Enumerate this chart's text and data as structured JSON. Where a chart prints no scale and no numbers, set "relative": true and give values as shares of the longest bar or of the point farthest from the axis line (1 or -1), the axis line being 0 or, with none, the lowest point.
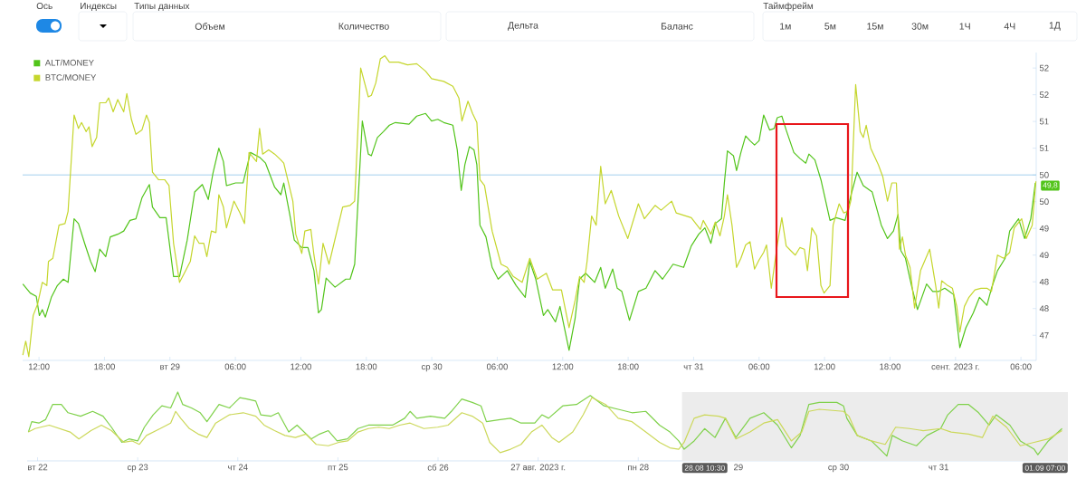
{
  "chart_data": [
    {
      "type": "other",
      "annotations": [
        "Ось",
        "Индексы",
        "Типы данных",
        "Объем",
        "Количество",
        "Дельта",
        "Баланс",
        "Таймфрейм",
        "1м",
        "5м",
        "15м",
        "30м",
        "1Ч",
        "4Ч",
        "1Д"
      ]
    },
    {
      "type": "line",
      "legend": "top left",
      "xlim": [
        "2023-08-28T10:30",
        "2023-09-01T07:24"
      ],
      "xticks": [
        {
          "value": "2023-08-28T12:00",
          "label": "12:00"
        },
        {
          "value": "2023-08-28T18:00",
          "label": "18:00"
        },
        {
          "value": "2023-08-29T00:00",
          "label": "вт 29"
        },
        {
          "value": "2023-08-29T06:00",
          "label": "06:00"
        },
        {
          "value": "2023-08-29T12:00",
          "label": "12:00"
        },
        {
          "value": "2023-08-29T18:00",
          "label": "18:00"
        },
        {
          "value": "2023-08-30T00:00",
          "label": "ср 30"
        },
        {
          "value": "2023-08-30T06:00",
          "label": "06:00"
        },
        {
          "value": "2023-08-30T12:00",
          "label": "12:00"
        },
        {
          "value": "2023-08-30T18:00",
          "label": "18:00"
        },
        {
          "value": "2023-08-31T00:00",
          "label": "чт 31"
        },
        {
          "value": "2023-08-31T06:00",
          "label": "06:00"
        },
        {
          "value": "2023-08-31T12:00",
          "label": "12:00"
        },
        {
          "value": "2023-08-31T18:00",
          "label": "18:00"
        },
        {
          "value": "2023-09-01T00:00",
          "label": "сент. 2023 г."
        },
        {
          "value": "2023-09-01T06:00",
          "label": "06:00"
        }
      ],
      "ylim": [
        46.53,
        52.29
      ],
      "yticks": [
        47,
        {
          "value": 47.5,
          "label": "48"
        },
        48,
        {
          "value": 48.5,
          "label": "49"
        },
        49,
        {
          "value": 49.5,
          "label": "50"
        },
        50,
        {
          "value": 50.5,
          "label": "51"
        },
        51,
        {
          "value": 51.5,
          "label": "52"
        },
        52
      ],
      "ref_lines": [
        {
          "axis": "y",
          "value": 50,
          "color": "#8ec5ea"
        }
      ],
      "annotations": [
        {
          "text": "49,8",
          "x": "2023-09-01T07:19",
          "y": 49.8
        }
      ],
      "series": [
        {
          "name": "ALT/MONEY",
          "color": "#52c41a",
          "x": [
            "2023-08-28T10:31",
            "2023-08-28T11:12",
            "2023-08-28T11:45",
            "2023-08-28T12:02",
            "2023-08-28T12:18",
            "2023-08-28T12:35",
            "2023-08-28T13:08",
            "2023-08-28T13:41",
            "2023-08-28T14:14",
            "2023-08-28T14:40",
            "2023-08-28T15:13",
            "2023-08-28T15:37",
            "2023-08-28T16:11",
            "2023-08-28T16:44",
            "2023-08-28T17:09",
            "2023-08-28T17:34",
            "2023-08-28T18:07",
            "2023-08-28T18:32",
            "2023-08-28T19:13",
            "2023-08-28T19:46",
            "2023-08-28T20:20",
            "2023-08-28T20:53",
            "2023-08-28T21:26",
            "2023-08-28T22:07",
            "2023-08-28T22:24",
            "2023-08-28T23:05",
            "2023-08-28T23:39",
            "2023-08-29T00:20",
            "2023-08-29T00:53",
            "2023-08-29T01:35",
            "2023-08-29T02:16",
            "2023-08-29T02:58",
            "2023-08-29T03:31",
            "2023-08-29T03:56",
            "2023-08-29T04:29",
            "2023-08-29T04:54",
            "2023-08-29T05:11",
            "2023-08-29T06:01",
            "2023-08-29T06:42",
            "2023-08-29T07:23",
            "2023-08-29T08:13",
            "2023-08-29T08:46",
            "2023-08-29T09:36",
            "2023-08-29T10:10",
            "2023-08-29T10:26",
            "2023-08-29T10:59",
            "2023-08-29T11:24",
            "2023-08-29T12:05",
            "2023-08-29T12:39",
            "2023-08-29T13:12",
            "2023-08-29T13:37",
            "2023-08-29T13:53",
            "2023-08-29T14:19",
            "2023-08-29T15:08",
            "2023-08-29T16:07",
            "2023-08-29T16:31",
            "2023-08-29T16:56",
            "2023-08-29T17:38",
            "2023-08-29T18:11",
            "2023-08-29T18:28",
            "2023-08-29T19:01",
            "2023-08-29T19:34",
            "2023-08-29T20:07",
            "2023-08-29T20:40",
            "2023-08-29T21:55",
            "2023-08-29T22:37",
            "2023-08-29T23:26",
            "2023-08-29T23:59",
            "2023-08-30T00:33",
            "2023-08-30T01:06",
            "2023-08-30T01:56",
            "2023-08-30T02:20",
            "2023-08-30T02:42",
            "2023-08-30T03:02",
            "2023-08-30T03:27",
            "2023-08-30T03:52",
            "2023-08-30T04:08",
            "2023-08-30T04:25",
            "2023-08-30T04:58",
            "2023-08-30T05:32",
            "2023-08-30T06:05",
            "2023-08-30T06:55",
            "2023-08-30T07:44",
            "2023-08-30T08:34",
            "2023-08-30T08:59",
            "2023-08-30T09:32",
            "2023-08-30T10:14",
            "2023-08-30T10:38",
            "2023-08-30T11:20",
            "2023-08-30T11:45",
            "2023-08-30T12:35",
            "2023-08-30T13:08",
            "2023-08-30T13:33",
            "2023-08-30T14:06",
            "2023-08-30T14:56",
            "2023-08-30T15:29",
            "2023-08-30T15:54",
            "2023-08-30T16:35",
            "2023-08-30T17:00",
            "2023-08-30T17:25",
            "2023-08-30T18:07",
            "2023-08-30T18:56",
            "2023-08-30T19:38",
            "2023-08-30T20:28",
            "2023-08-30T21:09",
            "2023-08-30T22:07",
            "2023-08-30T23:05",
            "2023-08-30T23:47",
            "2023-08-31T00:28",
            "2023-08-31T01:02",
            "2023-08-31T01:35",
            "2023-08-31T01:59",
            "2023-08-31T02:33",
            "2023-08-31T02:49",
            "2023-08-31T03:06",
            "2023-08-31T03:39",
            "2023-08-31T03:56",
            "2023-08-31T04:20",
            "2023-08-31T04:46",
            "2023-08-31T05:10",
            "2023-08-31T05:35",
            "2023-08-31T06:00",
            "2023-08-31T06:25",
            "2023-08-31T06:58",
            "2023-08-31T07:23",
            "2023-08-31T07:40",
            "2023-08-31T08:05",
            "2023-08-31T08:29",
            "2023-08-31T09:11",
            "2023-08-31T09:44",
            "2023-08-31T10:17",
            "2023-08-31T10:34",
            "2023-08-31T11:07",
            "2023-08-31T11:40",
            "2023-08-31T12:30",
            "2023-08-31T13:04",
            "2023-08-31T13:53",
            "2023-08-31T14:26",
            "2023-08-31T14:59",
            "2023-08-31T15:33",
            "2023-08-31T16:22",
            "2023-08-31T17:12",
            "2023-08-31T17:46",
            "2023-08-31T18:19",
            "2023-08-31T18:44",
            "2023-08-31T19:00",
            "2023-08-31T19:25",
            "2023-08-31T19:58",
            "2023-08-31T20:31",
            "2023-08-31T21:21",
            "2023-08-31T21:55",
            "2023-08-31T22:28",
            "2023-08-31T23:01",
            "2023-08-31T23:26",
            "2023-08-31T23:50",
            "2023-09-01T00:24",
            "2023-09-01T00:57",
            "2023-09-01T01:38",
            "2023-09-01T02:12",
            "2023-09-01T02:53",
            "2023-09-01T03:18",
            "2023-09-01T03:51",
            "2023-09-01T04:33",
            "2023-09-01T04:58",
            "2023-09-01T05:47",
            "2023-09-01T06:20",
            "2023-09-01T06:54",
            "2023-09-01T07:19"
          ],
          "values": [
            47.96,
            47.79,
            47.73,
            47.37,
            47.48,
            47.34,
            47.71,
            47.93,
            48.05,
            47.99,
            49.18,
            49.09,
            48.72,
            48.38,
            48.19,
            48.61,
            48.47,
            48.84,
            48.89,
            48.95,
            49.15,
            49.18,
            49.57,
            49.82,
            49.4,
            49.2,
            49.2,
            48.1,
            48.1,
            48.78,
            49.68,
            49.82,
            49.54,
            50.02,
            50.5,
            50.25,
            49.8,
            49.85,
            49.85,
            50.42,
            50.33,
            50.22,
            49.77,
            49.63,
            49.85,
            49.26,
            48.78,
            48.64,
            48.64,
            48.21,
            47.42,
            47.48,
            48.07,
            47.9,
            48.05,
            48.05,
            48.33,
            51.01,
            50.39,
            50.36,
            50.7,
            50.81,
            50.93,
            50.98,
            50.95,
            51.1,
            51.15,
            51.01,
            51.04,
            50.98,
            50.93,
            50.47,
            49.71,
            50.19,
            50.53,
            50.47,
            50.19,
            49.06,
            48.84,
            48.27,
            48.05,
            48.21,
            47.93,
            47.71,
            48.38,
            48.05,
            47.37,
            47.48,
            47.25,
            47.54,
            46.72,
            47.31,
            48.05,
            48.16,
            47.99,
            48.27,
            47.88,
            48.24,
            47.88,
            47.82,
            47.28,
            47.82,
            47.88,
            48.21,
            48.05,
            48.33,
            48.27,
            48.67,
            48.89,
            49.01,
            48.72,
            49.09,
            49.18,
            49.85,
            50.45,
            50.36,
            50.08,
            50.42,
            50.73,
            50.64,
            50.56,
            50.64,
            51.12,
            50.84,
            50.87,
            51.07,
            51.1,
            50.84,
            50.42,
            50.31,
            50.22,
            50.39,
            50.28,
            49.91,
            49.15,
            49.2,
            49.15,
            49.63,
            50.05,
            49.8,
            49.68,
            49.06,
            48.81,
            48.95,
            49.26,
            48.58,
            48.44,
            47.93,
            47.48,
            47.96,
            47.82,
            47.82,
            47.88,
            47.82,
            47.76,
            46.77,
            47.14,
            47.42,
            47.71,
            47.56,
            47.88,
            48.21,
            48.44,
            48.95,
            49.18,
            48.81,
            49.18,
            49.85
          ]
        },
        {
          "name": "BTC/MONEY",
          "color": "#c5d62d",
          "x": [
            "2023-08-28T10:31",
            "2023-08-28T10:47",
            "2023-08-28T11:04",
            "2023-08-28T11:28",
            "2023-08-28T11:53",
            "2023-08-28T12:18",
            "2023-08-28T12:43",
            "2023-08-28T12:52",
            "2023-08-28T13:16",
            "2023-08-28T13:50",
            "2023-08-28T14:23",
            "2023-08-28T14:40",
            "2023-08-28T15:13",
            "2023-08-28T15:37",
            "2023-08-28T15:54",
            "2023-08-28T16:19",
            "2023-08-28T16:35",
            "2023-08-28T16:52",
            "2023-08-28T17:17",
            "2023-08-28T17:34",
            "2023-08-28T18:07",
            "2023-08-28T18:23",
            "2023-08-28T18:48",
            "2023-08-28T19:13",
            "2023-08-28T19:46",
            "2023-08-28T20:03",
            "2023-08-28T20:28",
            "2023-08-28T20:53",
            "2023-08-28T21:26",
            "2023-08-28T21:51",
            "2023-08-28T22:07",
            "2023-08-28T22:24",
            "2023-08-28T22:57",
            "2023-08-28T23:31",
            "2023-08-28T23:55",
            "2023-08-29T00:20",
            "2023-08-29T00:53",
            "2023-08-29T01:19",
            "2023-08-29T01:52",
            "2023-08-29T02:16",
            "2023-08-29T02:41",
            "2023-08-29T03:06",
            "2023-08-29T03:23",
            "2023-08-29T03:48",
            "2023-08-29T04:13",
            "2023-08-29T04:29",
            "2023-08-29T04:54",
            "2023-08-29T05:11",
            "2023-08-29T05:52",
            "2023-08-29T06:25",
            "2023-08-29T06:50",
            "2023-08-29T07:15",
            "2023-08-29T07:56",
            "2023-08-29T08:13",
            "2023-08-29T08:30",
            "2023-08-29T09:03",
            "2023-08-29T09:36",
            "2023-08-29T10:10",
            "2023-08-29T10:26",
            "2023-08-29T11:16",
            "2023-08-29T11:32",
            "2023-08-29T12:05",
            "2023-08-29T12:22",
            "2023-08-29T12:55",
            "2023-08-29T13:12",
            "2023-08-29T13:37",
            "2023-08-29T14:02",
            "2023-08-29T14:35",
            "2023-08-29T15:50",
            "2023-08-29T16:31",
            "2023-08-29T16:56",
            "2023-08-29T17:29",
            "2023-08-29T18:11",
            "2023-08-29T18:28",
            "2023-08-29T18:52",
            "2023-08-29T19:17",
            "2023-08-29T19:42",
            "2023-08-29T20:07",
            "2023-08-29T20:57",
            "2023-08-29T21:47",
            "2023-08-29T22:37",
            "2023-08-29T23:26",
            "2023-08-29T23:59",
            "2023-08-30T01:06",
            "2023-08-30T01:56",
            "2023-08-30T02:29",
            "2023-08-30T02:46",
            "2023-08-30T03:19",
            "2023-08-30T03:44",
            "2023-08-30T04:08",
            "2023-08-30T04:25",
            "2023-08-30T04:50",
            "2023-08-30T05:32",
            "2023-08-30T06:21",
            "2023-08-30T06:55",
            "2023-08-30T07:28",
            "2023-08-30T08:17",
            "2023-08-30T08:59",
            "2023-08-30T09:40",
            "2023-08-30T10:30",
            "2023-08-30T11:04",
            "2023-08-30T11:53",
            "2023-08-30T12:35",
            "2023-08-30T13:08",
            "2023-08-30T13:33",
            "2023-08-30T13:58",
            "2023-08-30T14:14",
            "2023-08-30T14:39",
            "2023-08-30T15:04",
            "2023-08-30T15:29",
            "2023-08-30T15:54",
            "2023-08-30T16:27",
            "2023-08-30T17:08",
            "2023-08-30T17:58",
            "2023-08-30T18:56",
            "2023-08-30T19:29",
            "2023-08-30T20:28",
            "2023-08-30T21:01",
            "2023-08-30T21:59",
            "2023-08-30T22:24",
            "2023-08-30T23:47",
            "2023-08-31T00:37",
            "2023-08-31T00:53",
            "2023-08-31T01:35",
            "2023-08-31T01:59",
            "2023-08-31T02:25",
            "2023-08-31T02:49",
            "2023-08-31T03:06",
            "2023-08-31T03:31",
            "2023-08-31T03:56",
            "2023-08-31T04:20",
            "2023-08-31T04:46",
            "2023-08-31T05:10",
            "2023-08-31T05:35",
            "2023-08-31T06:00",
            "2023-08-31T06:25",
            "2023-08-31T06:41",
            "2023-08-31T07:07",
            "2023-08-31T07:40",
            "2023-08-31T08:05",
            "2023-08-31T08:29",
            "2023-08-31T08:55",
            "2023-08-31T09:19",
            "2023-08-31T09:44",
            "2023-08-31T10:09",
            "2023-08-31T10:26",
            "2023-08-31T10:50",
            "2023-08-31T11:16",
            "2023-08-31T11:40",
            "2023-08-31T11:57",
            "2023-08-31T12:30",
            "2023-08-31T12:47",
            "2023-08-31T13:20",
            "2023-08-31T13:45",
            "2023-08-31T14:10",
            "2023-08-31T14:26",
            "2023-08-31T14:51",
            "2023-08-31T15:16",
            "2023-08-31T15:33",
            "2023-08-31T15:49",
            "2023-08-31T16:14",
            "2023-08-31T16:56",
            "2023-08-31T17:20",
            "2023-08-31T17:46",
            "2023-08-31T18:10",
            "2023-08-31T18:35",
            "2023-08-31T18:52",
            "2023-08-31T19:08",
            "2023-08-31T19:25",
            "2023-08-31T19:50",
            "2023-08-31T20:15",
            "2023-08-31T20:48",
            "2023-08-31T21:38",
            "2023-08-31T22:11",
            "2023-08-31T22:28",
            "2023-08-31T22:44",
            "2023-08-31T23:17",
            "2023-08-31T23:43",
            "2023-09-01T00:07",
            "2023-09-01T00:24",
            "2023-09-01T00:49",
            "2023-09-01T01:14",
            "2023-09-01T01:47",
            "2023-09-01T02:20",
            "2023-09-01T02:53",
            "2023-09-01T03:18",
            "2023-09-01T03:51",
            "2023-09-01T04:25",
            "2023-09-01T04:58",
            "2023-09-01T05:23",
            "2023-09-01T06:04",
            "2023-09-01T06:29",
            "2023-09-01T07:02",
            "2023-09-01T07:22"
          ],
          "values": [
            46.63,
            46.89,
            46.6,
            47.37,
            47.59,
            47.99,
            47.93,
            48.38,
            48.44,
            49.06,
            49.09,
            49.32,
            51.12,
            50.87,
            50.98,
            50.81,
            50.9,
            50.53,
            50.7,
            51.35,
            51.35,
            51.44,
            51.18,
            51.41,
            51.18,
            51.52,
            51.04,
            50.76,
            50.84,
            51.12,
            50.98,
            50.05,
            49.91,
            49.91,
            49.8,
            48.72,
            47.99,
            48.16,
            48.38,
            48.86,
            48.72,
            48.72,
            48.47,
            48.95,
            48.92,
            49.63,
            49.4,
            49.01,
            49.51,
            49.29,
            49.09,
            50.42,
            50.25,
            50.87,
            50.39,
            50.47,
            50.39,
            50.28,
            50.22,
            49.51,
            48.89,
            48.53,
            48.95,
            48.98,
            48.5,
            47.96,
            48.72,
            48.33,
            49.4,
            49.43,
            49.51,
            52.0,
            51.46,
            51.49,
            51.72,
            52.17,
            52.23,
            52.11,
            52.11,
            52.06,
            52.08,
            51.94,
            51.8,
            51.75,
            51.66,
            51.44,
            51.01,
            51.38,
            51.15,
            50.98,
            49.91,
            49.8,
            48.95,
            48.33,
            48.27,
            48.1,
            47.99,
            48.44,
            48.05,
            48.16,
            47.85,
            47.85,
            47.14,
            47.65,
            48.1,
            47.99,
            48.38,
            49.23,
            49.06,
            50.16,
            49.46,
            49.71,
            49.23,
            48.81,
            49.46,
            49.18,
            49.43,
            49.34,
            49.51,
            49.29,
            49.2,
            48.98,
            49.15,
            48.89,
            49.12,
            48.86,
            49.23,
            49.63,
            49.06,
            48.27,
            48.44,
            48.69,
            48.75,
            48.24,
            48.41,
            48.55,
            48.69,
            47.88,
            48.69,
            49.2,
            48.67,
            48.58,
            48.5,
            48.64,
            48.61,
            48.21,
            49.01,
            48.86,
            47.93,
            47.79,
            47.93,
            49.06,
            49.46,
            49.29,
            49.32,
            49.54,
            51.69,
            50.81,
            50.7,
            50.93,
            50.5,
            50.19,
            49.97,
            49.51,
            49.85,
            49.85,
            48.61,
            48.84,
            48.5,
            48.27,
            47.51,
            48.21,
            48.61,
            47.93,
            47.51,
            48.02,
            47.93,
            47.88,
            47.54,
            47.06,
            47.54,
            47.71,
            47.85,
            47.88,
            47.88,
            47.82,
            48.5,
            48.44,
            48.55,
            49.01,
            49.18,
            48.81,
            49.06,
            49.88
          ]
        }
      ]
    },
    {
      "type": "line",
      "relative": true,
      "xlim": [
        "2023-08-21T21:30",
        "2023-09-01T07:00"
      ],
      "xticks": [
        {
          "value": "2023-08-22T00:00",
          "label": "вт 22"
        },
        {
          "value": "2023-08-23T00:00",
          "label": "ср 23"
        },
        {
          "value": "2023-08-24T00:00",
          "label": "чт 24"
        },
        {
          "value": "2023-08-25T00:00",
          "label": "пт 25"
        },
        {
          "value": "2023-08-26T00:00",
          "label": "сб 26"
        },
        {
          "value": "2023-08-27T00:00",
          "label": "27 авг. 2023 г."
        },
        {
          "value": "2023-08-28T00:00",
          "label": "пн 28"
        },
        {
          "value": "2023-08-29T00:00",
          "label": "29"
        },
        {
          "value": "2023-08-30T00:00",
          "label": "ср 30"
        },
        {
          "value": "2023-08-31T00:00",
          "label": "чт 31"
        }
      ],
      "bands": [
        {
          "axis": "x",
          "from": "2023-08-28T10:30",
          "to": "2023-09-01T07:00",
          "color": "#ececec"
        }
      ],
      "annotations": [
        {
          "text": "28.08 10:30",
          "x": "2023-08-28T10:30",
          "y": 0
        },
        {
          "text": "01.09 07:00",
          "x": "2023-09-01T07:00",
          "y": 0
        }
      ],
      "series": [
        {
          "color": "#7fd14a",
          "x": [
            "2023-08-21T21:48",
            "2023-08-21T22:36",
            "2023-08-22T00:18",
            "2023-08-22T01:54",
            "2023-08-22T03:36",
            "2023-08-22T05:42",
            "2023-08-22T07:18",
            "2023-08-22T10:18",
            "2023-08-22T13:12",
            "2023-08-22T15:42",
            "2023-08-22T17:42",
            "2023-08-22T20:12",
            "2023-08-22T21:54",
            "2023-08-23T00:00",
            "2023-08-23T01:36",
            "2023-08-23T03:42",
            "2023-08-23T05:48",
            "2023-08-23T07:54",
            "2023-08-23T09:36",
            "2023-08-23T10:48",
            "2023-08-23T12:54",
            "2023-08-23T15:00",
            "2023-08-23T16:36",
            "2023-08-23T19:30",
            "2023-08-23T22:00",
            "2023-08-24T00:30",
            "2023-08-24T02:12",
            "2023-08-24T04:18",
            "2023-08-24T05:30",
            "2023-08-24T08:00",
            "2023-08-24T09:42",
            "2023-08-24T12:12",
            "2023-08-24T14:12",
            "2023-08-24T17:36",
            "2023-08-24T19:36",
            "2023-08-24T21:42",
            "2023-08-24T23:48",
            "2023-08-25T02:18",
            "2023-08-25T04:48",
            "2023-08-25T07:18",
            "2023-08-25T09:48",
            "2023-08-25T13:06",
            "2023-08-25T16:00",
            "2023-08-25T17:18",
            "2023-08-25T18:54",
            "2023-08-25T22:12",
            "2023-08-26T01:36",
            "2023-08-26T03:12",
            "2023-08-26T05:42",
            "2023-08-26T08:12",
            "2023-08-26T10:18",
            "2023-08-26T11:36",
            "2023-08-26T14:54",
            "2023-08-26T17:24",
            "2023-08-26T19:54",
            "2023-08-26T23:12",
            "2023-08-27T00:54",
            "2023-08-27T02:30",
            "2023-08-27T05:54",
            "2023-08-27T09:12",
            "2023-08-27T12:30",
            "2023-08-27T15:48",
            "2023-08-27T19:12",
            "2023-08-27T22:30",
            "2023-08-28T01:48",
            "2023-08-28T05:06",
            "2023-08-28T07:36",
            "2023-08-28T09:42",
            "2023-08-28T11:00",
            "2023-08-28T13:24",
            "2023-08-28T15:54",
            "2023-08-28T18:24",
            "2023-08-28T20:54",
            "2023-08-28T23:24",
            "2023-08-29T02:48",
            "2023-08-29T06:06",
            "2023-08-29T09:24",
            "2023-08-29T12:42",
            "2023-08-29T14:48",
            "2023-08-29T16:54",
            "2023-08-29T19:24",
            "2023-08-29T23:36",
            "2023-08-30T01:12",
            "2023-08-30T02:00",
            "2023-08-30T04:30",
            "2023-08-30T07:54",
            "2023-08-30T11:36",
            "2023-08-30T12:54",
            "2023-08-30T15:24",
            "2023-08-30T18:42",
            "2023-08-30T21:12",
            "2023-08-31T00:30",
            "2023-08-31T02:12",
            "2023-08-31T04:42",
            "2023-08-31T07:12",
            "2023-08-31T09:36",
            "2023-08-31T12:06",
            "2023-08-31T13:48",
            "2023-08-31T17:06",
            "2023-08-31T19:36",
            "2023-08-31T22:54",
            "2023-08-31T23:48",
            "2023-09-01T02:18",
            "2023-09-01T05:36"
          ],
          "values": [
            0.42,
            0.57,
            0.55,
            0.6,
            0.82,
            0.82,
            0.7,
            0.65,
            0.72,
            0.65,
            0.49,
            0.27,
            0.32,
            0.29,
            0.49,
            0.67,
            0.8,
            0.77,
            1.0,
            0.82,
            0.77,
            0.7,
            0.57,
            0.82,
            0.77,
            0.92,
            0.9,
            0.87,
            0.67,
            0.65,
            0.7,
            0.42,
            0.52,
            0.32,
            0.39,
            0.44,
            0.29,
            0.32,
            0.47,
            0.52,
            0.52,
            0.52,
            0.62,
            0.72,
            0.62,
            0.65,
            0.62,
            0.72,
            0.9,
            0.85,
            0.8,
            0.57,
            0.6,
            0.62,
            0.55,
            0.55,
            0.67,
            0.62,
            0.8,
            0.82,
            0.95,
            0.8,
            0.75,
            0.7,
            0.72,
            0.52,
            0.42,
            0.29,
            0.17,
            0.29,
            0.47,
            0.34,
            0.62,
            0.34,
            0.62,
            0.7,
            0.52,
            0.19,
            0.37,
            0.82,
            0.85,
            0.85,
            0.8,
            0.62,
            0.37,
            0.29,
            0.07,
            0.37,
            0.29,
            0.22,
            0.37,
            0.47,
            0.67,
            0.82,
            0.82,
            0.7,
            0.52,
            0.67,
            0.52,
            0.29,
            0.17,
            0.09,
            0.29,
            0.47
          ]
        },
        {
          "color": "#ccd85a",
          "x": [
            "2023-08-21T21:48",
            "2023-08-21T23:24",
            "2023-08-22T02:48",
            "2023-08-22T05:18",
            "2023-08-22T07:48",
            "2023-08-22T09:54",
            "2023-08-22T12:48",
            "2023-08-22T15:18",
            "2023-08-22T17:42",
            "2023-08-22T20:42",
            "2023-08-22T22:42",
            "2023-08-23T00:24",
            "2023-08-23T02:06",
            "2023-08-23T05:24",
            "2023-08-23T07:54",
            "2023-08-23T09:06",
            "2023-08-23T10:18",
            "2023-08-23T12:24",
            "2023-08-23T14:30",
            "2023-08-23T16:36",
            "2023-08-23T18:42",
            "2023-08-23T22:00",
            "2023-08-24T01:18",
            "2023-08-24T04:18",
            "2023-08-24T06:18",
            "2023-08-24T08:48",
            "2023-08-24T11:18",
            "2023-08-24T13:48",
            "2023-08-24T16:18",
            "2023-08-24T18:48",
            "2023-08-24T21:42",
            "2023-08-25T00:12",
            "2023-08-25T02:18",
            "2023-08-25T04:48",
            "2023-08-25T07:18",
            "2023-08-25T09:48",
            "2023-08-25T12:18",
            "2023-08-25T14:48",
            "2023-08-25T17:18",
            "2023-08-25T20:36",
            "2023-08-25T23:54",
            "2023-08-26T02:24",
            "2023-08-26T05:42",
            "2023-08-26T08:12",
            "2023-08-26T10:42",
            "2023-08-26T12:24",
            "2023-08-26T14:54",
            "2023-08-26T17:24",
            "2023-08-26T19:54",
            "2023-08-26T22:24",
            "2023-08-27T00:54",
            "2023-08-27T03:18",
            "2023-08-27T05:00",
            "2023-08-27T08:18",
            "2023-08-27T10:48",
            "2023-08-27T12:54",
            "2023-08-27T16:12",
            "2023-08-27T19:12",
            "2023-08-27T22:30",
            "2023-08-28T01:48",
            "2023-08-28T05:06",
            "2023-08-28T07:36",
            "2023-08-28T09:42",
            "2023-08-28T11:00",
            "2023-08-28T13:24",
            "2023-08-28T15:54",
            "2023-08-28T19:18",
            "2023-08-28T20:54",
            "2023-08-28T23:24",
            "2023-08-29T02:48",
            "2023-08-29T06:06",
            "2023-08-29T09:24",
            "2023-08-29T12:42",
            "2023-08-29T15:12",
            "2023-08-29T16:54",
            "2023-08-29T19:24",
            "2023-08-30T01:12",
            "2023-08-30T02:30",
            "2023-08-30T04:30",
            "2023-08-30T07:54",
            "2023-08-30T11:12",
            "2023-08-30T13:42",
            "2023-08-30T17:00",
            "2023-08-30T20:18",
            "2023-08-31T00:30",
            "2023-08-31T03:00",
            "2023-08-31T07:12",
            "2023-08-31T10:30",
            "2023-08-31T13:00",
            "2023-08-31T16:18",
            "2023-08-31T19:36",
            "2023-08-31T22:54",
            "2023-09-01T02:18",
            "2023-09-01T05:36"
          ],
          "values": [
            0.42,
            0.47,
            0.52,
            0.47,
            0.42,
            0.32,
            0.44,
            0.52,
            0.44,
            0.27,
            0.29,
            0.24,
            0.37,
            0.47,
            0.55,
            0.72,
            0.62,
            0.47,
            0.39,
            0.34,
            0.55,
            0.67,
            0.7,
            0.65,
            0.52,
            0.44,
            0.37,
            0.34,
            0.39,
            0.24,
            0.22,
            0.27,
            0.29,
            0.42,
            0.47,
            0.49,
            0.47,
            0.52,
            0.55,
            0.47,
            0.49,
            0.52,
            0.7,
            0.65,
            0.55,
            0.27,
            0.12,
            0.17,
            0.24,
            0.42,
            0.52,
            0.34,
            0.27,
            0.42,
            0.67,
            0.92,
            0.82,
            0.62,
            0.57,
            0.42,
            0.27,
            0.19,
            0.17,
            0.27,
            0.62,
            0.67,
            0.65,
            0.62,
            0.32,
            0.42,
            0.55,
            0.6,
            0.29,
            0.42,
            0.72,
            0.75,
            0.72,
            0.65,
            0.37,
            0.29,
            0.24,
            0.49,
            0.47,
            0.44,
            0.47,
            0.42,
            0.39,
            0.34,
            0.65,
            0.49,
            0.22,
            0.27,
            0.32,
            0.44
          ]
        }
      ]
    }
  ]
}
